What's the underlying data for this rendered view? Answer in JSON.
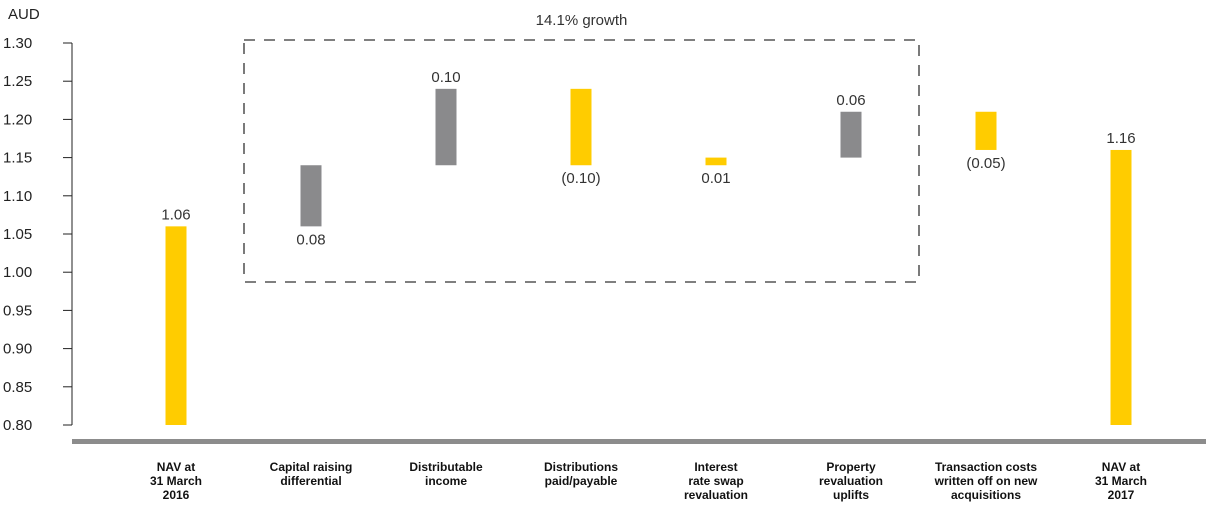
{
  "chart_data": {
    "type": "bar",
    "ylabel": "AUD",
    "ylim": [
      0.8,
      1.3
    ],
    "yticks": [
      "1.30",
      "1.25",
      "1.20",
      "1.15",
      "1.10",
      "1.05",
      "1.00",
      "0.95",
      "0.90",
      "0.85",
      "0.80"
    ],
    "grid": false,
    "categories": [
      [
        "NAV at",
        "31 March",
        "2016"
      ],
      [
        "Capital raising",
        "differential"
      ],
      [
        "Distributable",
        "income"
      ],
      [
        "Distributions",
        "paid/payable"
      ],
      [
        "Interest",
        "rate swap",
        "revaluation"
      ],
      [
        "Property",
        "revaluation",
        "uplifts"
      ],
      [
        "Transaction costs",
        "written off on new",
        "acquisitions"
      ],
      [
        "NAV at",
        "31 March",
        "2017"
      ]
    ],
    "bars": [
      {
        "low": 0.8,
        "high": 1.06,
        "label": "1.06",
        "color": "yellow",
        "label_pos": "above"
      },
      {
        "low": 1.06,
        "high": 1.14,
        "label": "0.08",
        "color": "grey",
        "label_pos": "below"
      },
      {
        "low": 1.14,
        "high": 1.24,
        "label": "0.10",
        "color": "grey",
        "label_pos": "above"
      },
      {
        "low": 1.14,
        "high": 1.24,
        "label": "(0.10)",
        "color": "yellow",
        "label_pos": "below"
      },
      {
        "low": 1.14,
        "high": 1.15,
        "label": "0.01",
        "color": "yellow",
        "label_pos": "below"
      },
      {
        "low": 1.15,
        "high": 1.21,
        "label": "0.06",
        "color": "grey",
        "label_pos": "above"
      },
      {
        "low": 1.16,
        "high": 1.21,
        "label": "(0.05)",
        "color": "yellow",
        "label_pos": "below"
      },
      {
        "low": 0.8,
        "high": 1.16,
        "label": "1.16",
        "color": "yellow",
        "label_pos": "above"
      }
    ],
    "annotation": "14.1% growth",
    "annotation_box": {
      "from_category": 1,
      "to_category": 5
    },
    "colors": {
      "yellow": "#FFCC00",
      "grey": "#8A8A8C",
      "axis": "#222222",
      "baseline": "#8C8C8C",
      "box": "#333333"
    }
  }
}
